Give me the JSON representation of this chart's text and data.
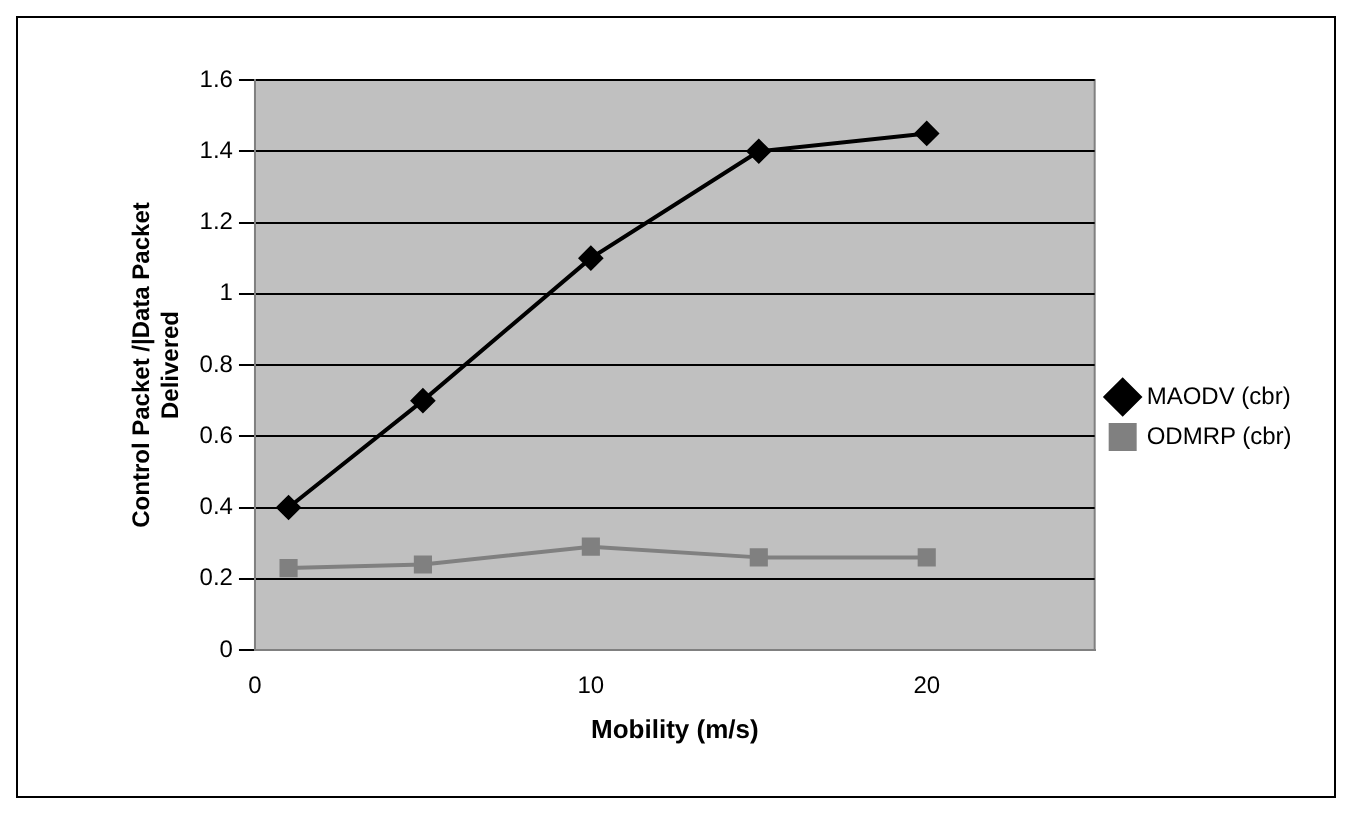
{
  "chart_data": {
    "type": "line",
    "xlabel": "Mobility (m/s)",
    "ylabel": "Control Packet /|Data Packet Delivered",
    "xlim": [
      0,
      25
    ],
    "xticks": [
      0,
      10,
      20
    ],
    "ylim": [
      0,
      1.6
    ],
    "yticks": [
      0,
      0.2,
      0.4,
      0.6,
      0.8,
      1,
      1.2,
      1.4,
      1.6
    ],
    "grid": "y",
    "legend": "right",
    "series": [
      {
        "name": "MAODV (cbr)",
        "color": "#000000",
        "marker": "diamond",
        "x": [
          1,
          5,
          10,
          15,
          20
        ],
        "values": [
          0.4,
          0.7,
          1.1,
          1.4,
          1.45
        ]
      },
      {
        "name": "ODMRP (cbr)",
        "color": "#808080",
        "marker": "square",
        "x": [
          1,
          5,
          10,
          15,
          20
        ],
        "values": [
          0.23,
          0.24,
          0.29,
          0.26,
          0.26
        ]
      }
    ]
  }
}
